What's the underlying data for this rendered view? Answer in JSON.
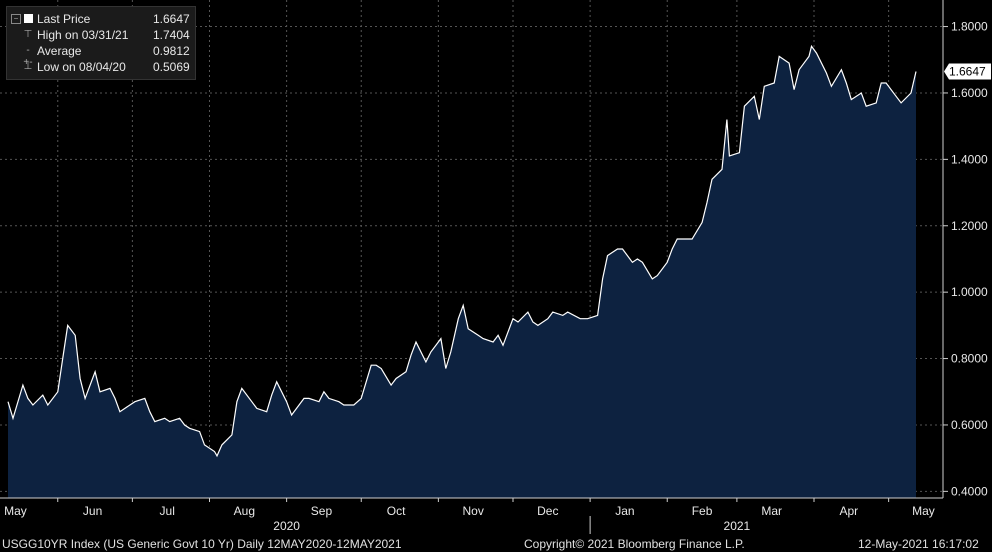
{
  "legend": {
    "rows": [
      {
        "label": "Last Price",
        "value": "1.6647",
        "symbol": "filled-square-icon"
      },
      {
        "label": "High on 03/31/21",
        "value": "1.7404",
        "symbol": "high-marker-icon"
      },
      {
        "label": "Average",
        "value": "0.9812",
        "symbol": "average-marker-icon"
      },
      {
        "label": "Low on 08/04/20",
        "value": "0.5069",
        "symbol": "low-marker-icon"
      }
    ]
  },
  "footer": {
    "security": "USGG10YR Index (US Generic Govt 10 Yr)  Daily 12MAY2020-12MAY2021",
    "copyright": "Copyright© 2021 Bloomberg Finance L.P.",
    "timestamp": "12-May-2021 16:17:02"
  },
  "colors": {
    "background": "#000000",
    "area_fill": "#0d2240",
    "line": "#ffffff",
    "grid": "#555555",
    "last_price_tag": "#ffffff"
  },
  "chart_data": {
    "type": "area",
    "title": "",
    "xlabel": "",
    "ylabel": "",
    "ylim": [
      0.38,
      1.88
    ],
    "y_ticks": [
      "0.4000",
      "0.6000",
      "0.8000",
      "1.0000",
      "1.2000",
      "1.4000",
      "1.6000",
      "1.8000"
    ],
    "y_tick_values": [
      0.4,
      0.6,
      0.8,
      1.0,
      1.2,
      1.4,
      1.6,
      1.8
    ],
    "last_price_label": "1.6647",
    "last_price": 1.6647,
    "x_start": "2020-05-12",
    "x_end": "2021-05-12",
    "month_ticks": [
      {
        "label": "May",
        "date": "2020-05-15"
      },
      {
        "label": "Jun",
        "date": "2020-06-15"
      },
      {
        "label": "Jul",
        "date": "2020-07-15"
      },
      {
        "label": "Aug",
        "date": "2020-08-15"
      },
      {
        "label": "Sep",
        "date": "2020-09-15"
      },
      {
        "label": "Oct",
        "date": "2020-10-15"
      },
      {
        "label": "Nov",
        "date": "2020-11-15"
      },
      {
        "label": "Dec",
        "date": "2020-12-15"
      },
      {
        "label": "Jan",
        "date": "2021-01-15"
      },
      {
        "label": "Feb",
        "date": "2021-02-15"
      },
      {
        "label": "Mar",
        "date": "2021-03-15"
      },
      {
        "label": "Apr",
        "date": "2021-04-15"
      },
      {
        "label": "May",
        "date": "2021-05-15"
      }
    ],
    "grid_dates": [
      "2020-06-01",
      "2020-07-01",
      "2020-08-01",
      "2020-09-01",
      "2020-10-01",
      "2020-11-01",
      "2020-12-01",
      "2021-01-01",
      "2021-02-01",
      "2021-03-01",
      "2021-04-01",
      "2021-05-01"
    ],
    "year_labels": [
      {
        "label": "2020",
        "date": "2020-09-01"
      },
      {
        "label": "2021",
        "date": "2021-03-01"
      }
    ],
    "grid": true,
    "series": [
      {
        "name": "Last Price",
        "points": [
          [
            "2020-05-12",
            0.67
          ],
          [
            "2020-05-14",
            0.62
          ],
          [
            "2020-05-18",
            0.72
          ],
          [
            "2020-05-20",
            0.68
          ],
          [
            "2020-05-22",
            0.66
          ],
          [
            "2020-05-26",
            0.69
          ],
          [
            "2020-05-28",
            0.66
          ],
          [
            "2020-06-01",
            0.7
          ],
          [
            "2020-06-03",
            0.8
          ],
          [
            "2020-06-05",
            0.9
          ],
          [
            "2020-06-08",
            0.87
          ],
          [
            "2020-06-10",
            0.74
          ],
          [
            "2020-06-12",
            0.68
          ],
          [
            "2020-06-16",
            0.76
          ],
          [
            "2020-06-18",
            0.7
          ],
          [
            "2020-06-22",
            0.71
          ],
          [
            "2020-06-24",
            0.68
          ],
          [
            "2020-06-26",
            0.64
          ],
          [
            "2020-06-30",
            0.66
          ],
          [
            "2020-07-02",
            0.67
          ],
          [
            "2020-07-06",
            0.68
          ],
          [
            "2020-07-08",
            0.64
          ],
          [
            "2020-07-10",
            0.61
          ],
          [
            "2020-07-14",
            0.62
          ],
          [
            "2020-07-16",
            0.61
          ],
          [
            "2020-07-20",
            0.62
          ],
          [
            "2020-07-22",
            0.6
          ],
          [
            "2020-07-24",
            0.59
          ],
          [
            "2020-07-28",
            0.58
          ],
          [
            "2020-07-30",
            0.54
          ],
          [
            "2020-08-03",
            0.52
          ],
          [
            "2020-08-04",
            0.5069
          ],
          [
            "2020-08-06",
            0.54
          ],
          [
            "2020-08-10",
            0.57
          ],
          [
            "2020-08-12",
            0.67
          ],
          [
            "2020-08-14",
            0.71
          ],
          [
            "2020-08-18",
            0.67
          ],
          [
            "2020-08-20",
            0.65
          ],
          [
            "2020-08-24",
            0.64
          ],
          [
            "2020-08-26",
            0.69
          ],
          [
            "2020-08-28",
            0.73
          ],
          [
            "2020-09-01",
            0.67
          ],
          [
            "2020-09-03",
            0.63
          ],
          [
            "2020-09-08",
            0.68
          ],
          [
            "2020-09-10",
            0.68
          ],
          [
            "2020-09-14",
            0.67
          ],
          [
            "2020-09-16",
            0.7
          ],
          [
            "2020-09-18",
            0.68
          ],
          [
            "2020-09-22",
            0.67
          ],
          [
            "2020-09-24",
            0.66
          ],
          [
            "2020-09-28",
            0.66
          ],
          [
            "2020-10-01",
            0.68
          ],
          [
            "2020-10-05",
            0.78
          ],
          [
            "2020-10-07",
            0.78
          ],
          [
            "2020-10-09",
            0.77
          ],
          [
            "2020-10-13",
            0.72
          ],
          [
            "2020-10-15",
            0.74
          ],
          [
            "2020-10-19",
            0.76
          ],
          [
            "2020-10-21",
            0.81
          ],
          [
            "2020-10-23",
            0.85
          ],
          [
            "2020-10-27",
            0.79
          ],
          [
            "2020-10-29",
            0.82
          ],
          [
            "2020-11-02",
            0.86
          ],
          [
            "2020-11-04",
            0.77
          ],
          [
            "2020-11-06",
            0.82
          ],
          [
            "2020-11-09",
            0.92
          ],
          [
            "2020-11-11",
            0.96
          ],
          [
            "2020-11-13",
            0.89
          ],
          [
            "2020-11-17",
            0.87
          ],
          [
            "2020-11-19",
            0.86
          ],
          [
            "2020-11-23",
            0.85
          ],
          [
            "2020-11-25",
            0.87
          ],
          [
            "2020-11-27",
            0.84
          ],
          [
            "2020-12-01",
            0.92
          ],
          [
            "2020-12-03",
            0.91
          ],
          [
            "2020-12-07",
            0.94
          ],
          [
            "2020-12-09",
            0.91
          ],
          [
            "2020-12-11",
            0.9
          ],
          [
            "2020-12-15",
            0.92
          ],
          [
            "2020-12-17",
            0.94
          ],
          [
            "2020-12-21",
            0.93
          ],
          [
            "2020-12-23",
            0.94
          ],
          [
            "2020-12-28",
            0.92
          ],
          [
            "2020-12-31",
            0.92
          ],
          [
            "2021-01-04",
            0.93
          ],
          [
            "2021-01-06",
            1.04
          ],
          [
            "2021-01-08",
            1.11
          ],
          [
            "2021-01-12",
            1.13
          ],
          [
            "2021-01-14",
            1.13
          ],
          [
            "2021-01-18",
            1.09
          ],
          [
            "2021-01-20",
            1.1
          ],
          [
            "2021-01-22",
            1.09
          ],
          [
            "2021-01-26",
            1.04
          ],
          [
            "2021-01-28",
            1.05
          ],
          [
            "2021-02-01",
            1.09
          ],
          [
            "2021-02-03",
            1.13
          ],
          [
            "2021-02-05",
            1.16
          ],
          [
            "2021-02-09",
            1.16
          ],
          [
            "2021-02-11",
            1.16
          ],
          [
            "2021-02-15",
            1.21
          ],
          [
            "2021-02-17",
            1.27
          ],
          [
            "2021-02-19",
            1.34
          ],
          [
            "2021-02-23",
            1.37
          ],
          [
            "2021-02-25",
            1.52
          ],
          [
            "2021-02-26",
            1.41
          ],
          [
            "2021-03-02",
            1.42
          ],
          [
            "2021-03-04",
            1.56
          ],
          [
            "2021-03-08",
            1.59
          ],
          [
            "2021-03-10",
            1.52
          ],
          [
            "2021-03-12",
            1.62
          ],
          [
            "2021-03-16",
            1.63
          ],
          [
            "2021-03-18",
            1.71
          ],
          [
            "2021-03-22",
            1.69
          ],
          [
            "2021-03-24",
            1.61
          ],
          [
            "2021-03-26",
            1.67
          ],
          [
            "2021-03-30",
            1.71
          ],
          [
            "2021-03-31",
            1.7404
          ],
          [
            "2021-04-02",
            1.72
          ],
          [
            "2021-04-06",
            1.66
          ],
          [
            "2021-04-08",
            1.62
          ],
          [
            "2021-04-12",
            1.67
          ],
          [
            "2021-04-14",
            1.63
          ],
          [
            "2021-04-16",
            1.58
          ],
          [
            "2021-04-20",
            1.6
          ],
          [
            "2021-04-22",
            1.56
          ],
          [
            "2021-04-26",
            1.57
          ],
          [
            "2021-04-28",
            1.63
          ],
          [
            "2021-04-30",
            1.63
          ],
          [
            "2021-05-04",
            1.59
          ],
          [
            "2021-05-06",
            1.57
          ],
          [
            "2021-05-10",
            1.6
          ],
          [
            "2021-05-12",
            1.6647
          ]
        ]
      }
    ]
  }
}
